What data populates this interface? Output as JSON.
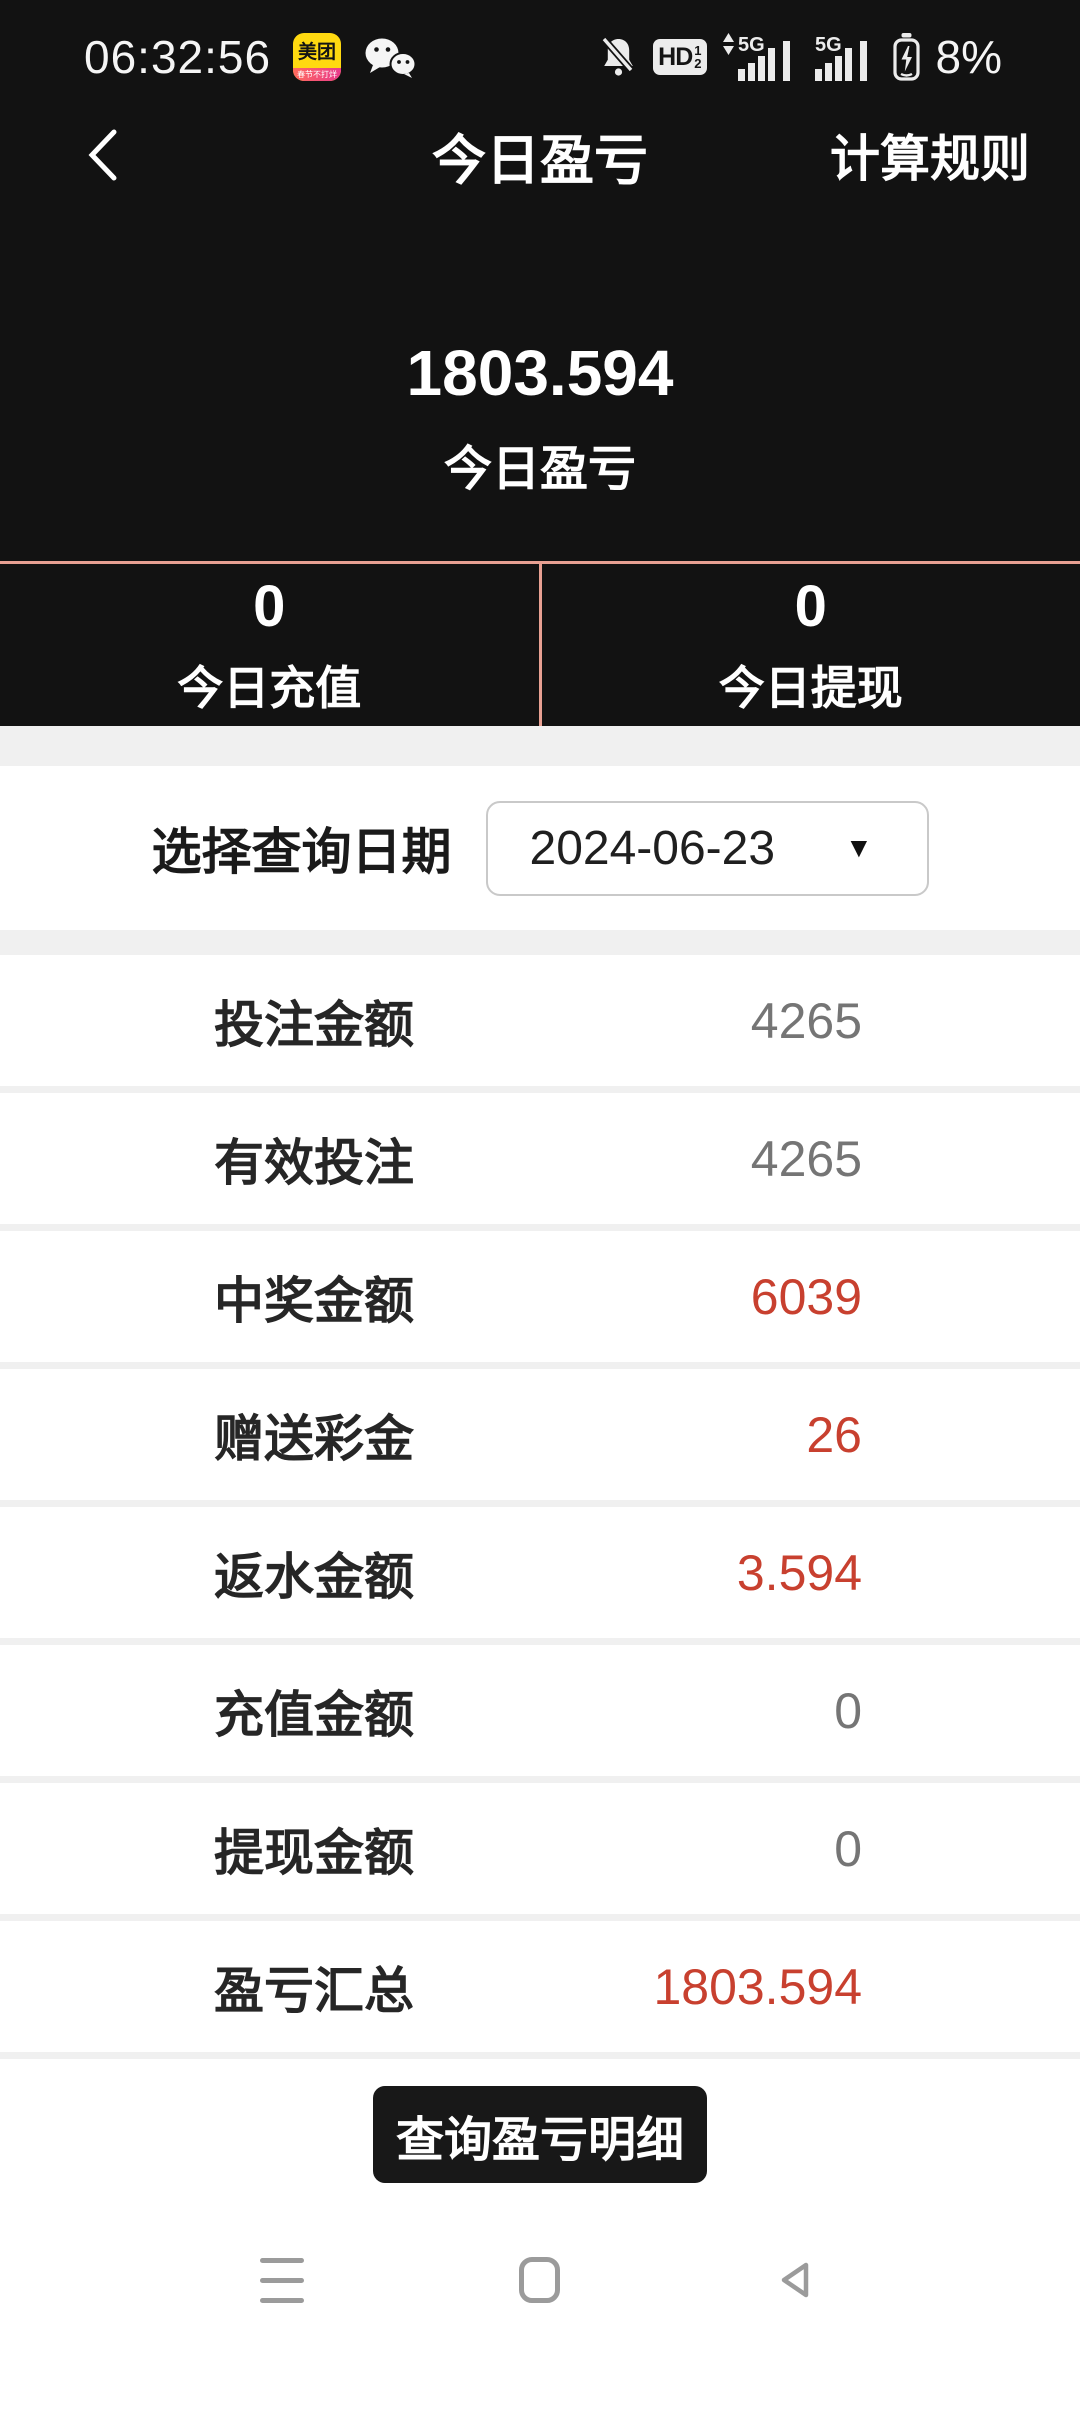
{
  "colors": {
    "accent_red": "#c8402f",
    "divider_salmon": "#e8a092",
    "top_background": "#121212",
    "button_background": "#181818",
    "value_gray": "#757575",
    "section_gap_gray": "#f0f0f0"
  },
  "status_bar": {
    "time": "06:32:56",
    "battery_percent": "8%",
    "meituan_label": "美团",
    "meituan_badge": "春节不打烊",
    "hd_label": "HD",
    "hd_sim_top": "1",
    "hd_sim_bottom": "2",
    "network_label_1": "5G",
    "network_label_2": "5G",
    "icons": [
      "meituan-app-icon",
      "wechat-icon",
      "notification-muted-icon",
      "hd-volte-icon",
      "signal-5g-1-icon",
      "signal-5g-2-icon",
      "battery-charging-icon"
    ]
  },
  "header": {
    "title": "今日盈亏",
    "action": "计算规则"
  },
  "summary": {
    "amount": "1803.594",
    "label": "今日盈亏"
  },
  "today_stats": [
    {
      "value": "0",
      "label": "今日充值"
    },
    {
      "value": "0",
      "label": "今日提现"
    }
  ],
  "date_picker": {
    "label": "选择查询日期",
    "value": "2024-06-23",
    "caret": "▼"
  },
  "rows": [
    {
      "label": "投注金额",
      "value": "4265",
      "highlight": false
    },
    {
      "label": "有效投注",
      "value": "4265",
      "highlight": false
    },
    {
      "label": "中奖金额",
      "value": "6039",
      "highlight": true
    },
    {
      "label": "赠送彩金",
      "value": "26",
      "highlight": true
    },
    {
      "label": "返水金额",
      "value": "3.594",
      "highlight": true
    },
    {
      "label": "充值金额",
      "value": "0",
      "highlight": false
    },
    {
      "label": "提现金额",
      "value": "0",
      "highlight": false
    },
    {
      "label": "盈亏汇总",
      "value": "1803.594",
      "highlight": true
    }
  ],
  "action_button": {
    "label": "查询盈亏明细"
  }
}
